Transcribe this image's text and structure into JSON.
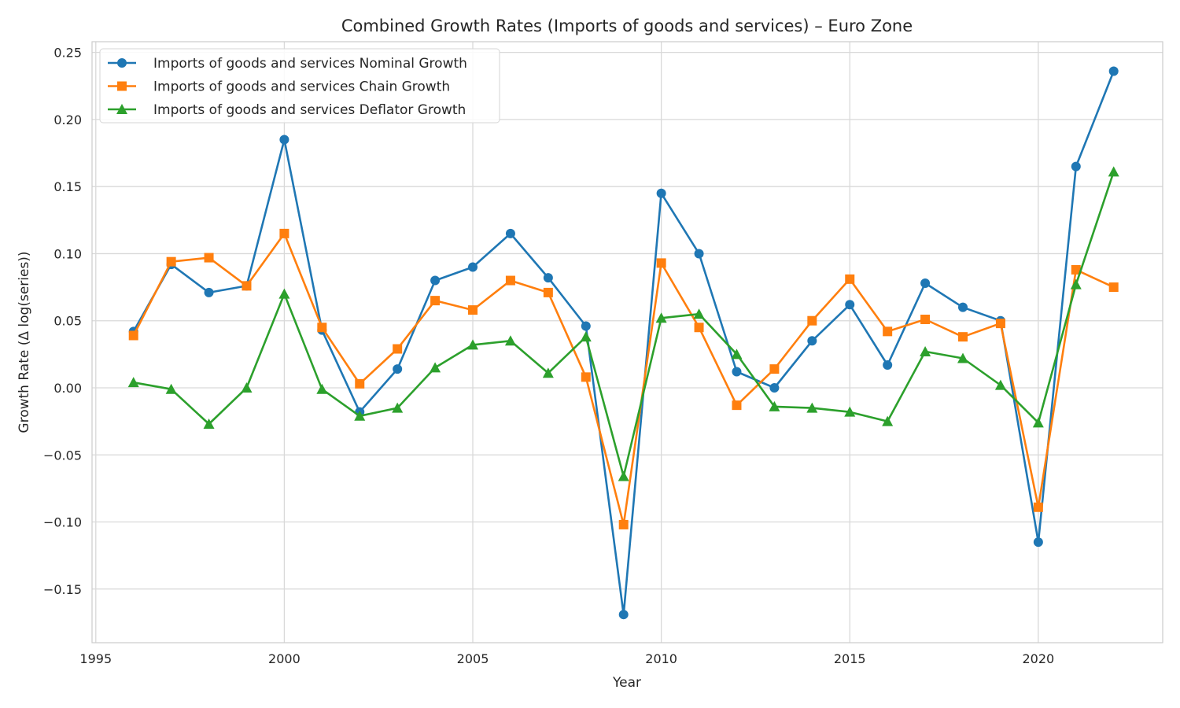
{
  "chart_data": {
    "type": "line",
    "title": "Combined Growth Rates (Imports of goods and services) – Euro Zone",
    "xlabel": "Year",
    "ylabel": "Growth Rate (Δ log(series))",
    "xlim": [
      1994.9,
      2023.3
    ],
    "ylim": [
      -0.19,
      0.258
    ],
    "x_ticks": [
      1995,
      2000,
      2005,
      2010,
      2015,
      2020
    ],
    "x_tick_labels": [
      "1995",
      "2000",
      "2005",
      "2010",
      "2015",
      "2020"
    ],
    "y_ticks": [
      -0.15,
      -0.1,
      -0.05,
      0.0,
      0.05,
      0.1,
      0.15,
      0.2,
      0.25
    ],
    "y_tick_labels": [
      "−0.15",
      "−0.10",
      "−0.05",
      "0.00",
      "0.05",
      "0.10",
      "0.15",
      "0.20",
      "0.25"
    ],
    "grid": true,
    "legend_position": "top-left",
    "x": [
      1996,
      1997,
      1998,
      1999,
      2000,
      2001,
      2002,
      2003,
      2004,
      2005,
      2006,
      2007,
      2008,
      2009,
      2010,
      2011,
      2012,
      2013,
      2014,
      2015,
      2016,
      2017,
      2018,
      2019,
      2020,
      2021,
      2022
    ],
    "series": [
      {
        "name": "Imports of goods and services Nominal Growth",
        "color": "#1f77b4",
        "marker": "circle",
        "values": [
          0.042,
          0.092,
          0.071,
          0.076,
          0.185,
          0.043,
          -0.018,
          0.014,
          0.08,
          0.09,
          0.115,
          0.082,
          0.046,
          -0.169,
          0.145,
          0.1,
          0.012,
          0.0,
          0.035,
          0.062,
          0.017,
          0.078,
          0.06,
          0.05,
          -0.115,
          0.165,
          0.236
        ]
      },
      {
        "name": "Imports of goods and services Chain Growth",
        "color": "#ff7f0e",
        "marker": "square",
        "values": [
          0.039,
          0.094,
          0.097,
          0.076,
          0.115,
          0.045,
          0.003,
          0.029,
          0.065,
          0.058,
          0.08,
          0.071,
          0.008,
          -0.102,
          0.093,
          0.045,
          -0.013,
          0.014,
          0.05,
          0.081,
          0.042,
          0.051,
          0.038,
          0.048,
          -0.089,
          0.088,
          0.075
        ]
      },
      {
        "name": "Imports of goods and services Deflator Growth",
        "color": "#2ca02c",
        "marker": "triangle",
        "values": [
          0.004,
          -0.001,
          -0.027,
          -0.0,
          0.07,
          -0.001,
          -0.021,
          -0.015,
          0.015,
          0.032,
          0.035,
          0.011,
          0.038,
          -0.066,
          0.052,
          0.055,
          0.025,
          -0.014,
          -0.015,
          -0.018,
          -0.025,
          0.027,
          0.022,
          0.002,
          -0.026,
          0.077,
          0.161
        ]
      }
    ]
  }
}
